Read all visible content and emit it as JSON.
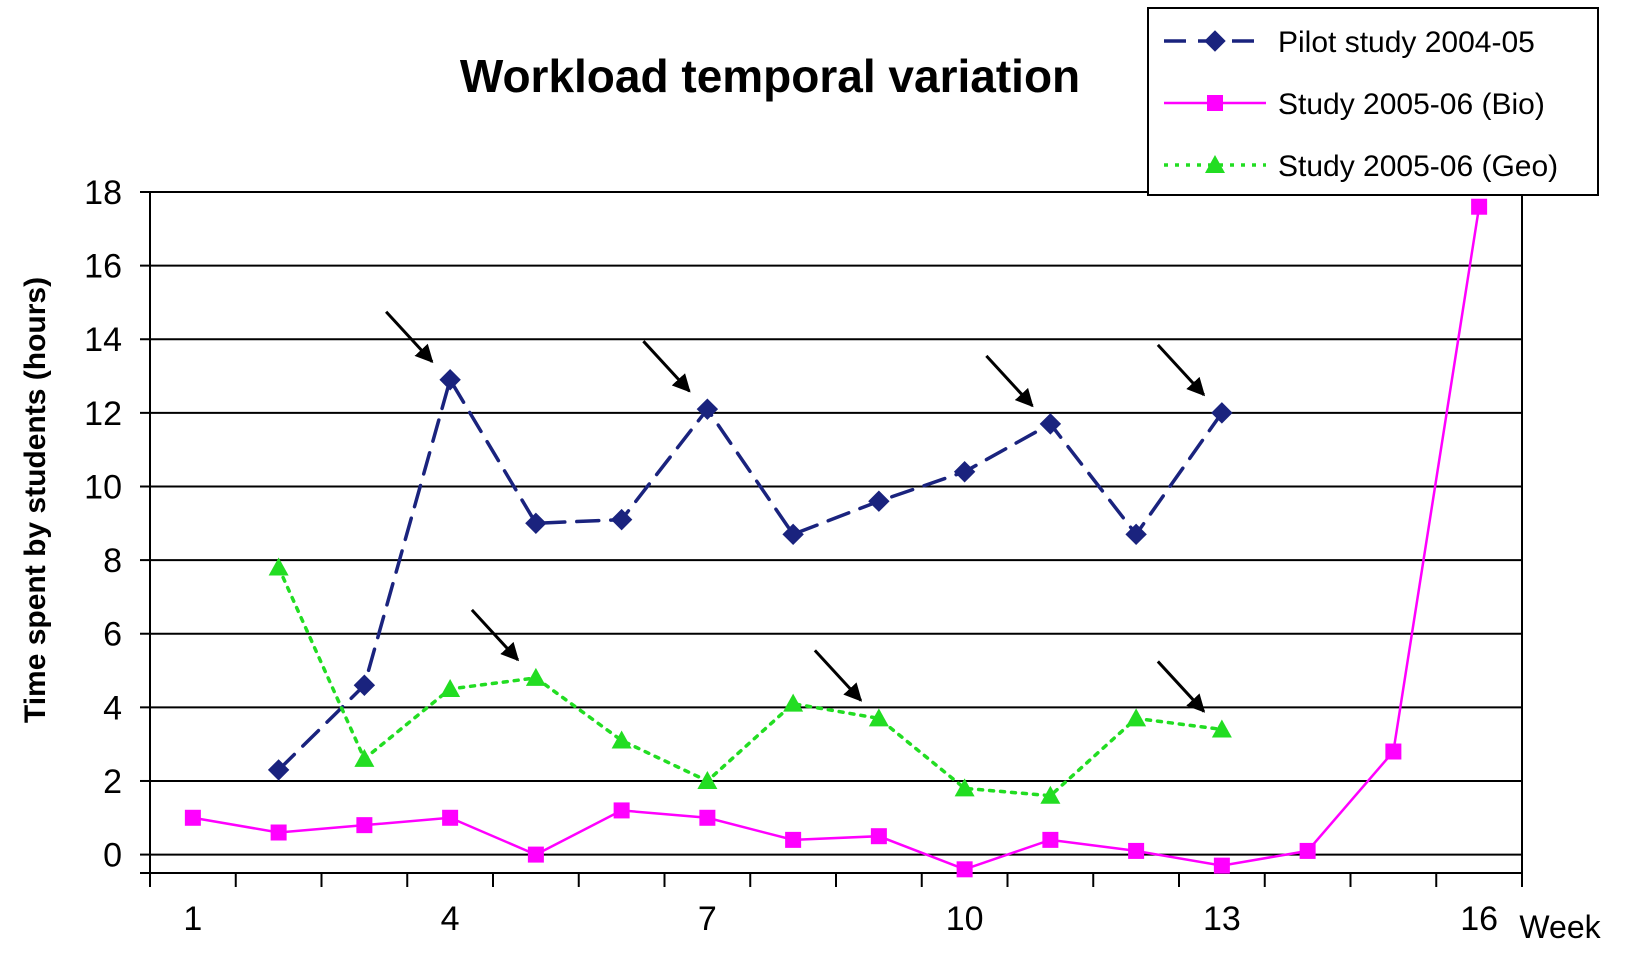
{
  "chart_data": {
    "type": "line",
    "title": "Workload temporal variation",
    "xlabel": "Week",
    "ylabel": "Time spent by students (hours)",
    "xlim": [
      0.5,
      16.5
    ],
    "ylim": [
      -0.5,
      18
    ],
    "x_ticks": [
      1,
      4,
      7,
      10,
      13,
      16
    ],
    "y_ticks": [
      0,
      2,
      4,
      6,
      8,
      10,
      12,
      14,
      16,
      18
    ],
    "grid": "horizontal",
    "legend_position": "top-right",
    "series": [
      {
        "name": "Pilot study 2004-05",
        "color": "#1a237e",
        "line_style": "dashed",
        "marker": "diamond",
        "x": [
          2,
          3,
          4,
          5,
          6,
          7,
          8,
          9,
          10,
          11,
          12,
          13
        ],
        "values": [
          2.3,
          4.6,
          12.9,
          9.0,
          9.1,
          12.1,
          8.7,
          9.6,
          10.4,
          11.7,
          8.7,
          12.0
        ]
      },
      {
        "name": "Study 2005-06 (Bio)",
        "color": "#ff00ff",
        "line_style": "solid",
        "marker": "square",
        "x": [
          1,
          2,
          3,
          4,
          5,
          6,
          7,
          8,
          9,
          10,
          11,
          12,
          13,
          14,
          15,
          16
        ],
        "values": [
          1.0,
          0.6,
          0.8,
          1.0,
          0.0,
          1.2,
          1.0,
          0.4,
          0.5,
          -0.4,
          0.4,
          0.1,
          -0.3,
          0.1,
          2.8,
          17.6
        ]
      },
      {
        "name": "Study 2005-06 (Geo)",
        "color": "#22dd22",
        "line_style": "dotted",
        "marker": "triangle",
        "x": [
          2,
          3,
          4,
          5,
          6,
          7,
          8,
          9,
          10,
          11,
          12,
          13
        ],
        "values": [
          7.8,
          2.6,
          4.5,
          4.8,
          3.1,
          2.0,
          4.1,
          3.7,
          1.8,
          1.6,
          3.7,
          3.4
        ]
      }
    ],
    "annotations": {
      "type": "arrow",
      "targets": [
        {
          "series": 0,
          "x": 4
        },
        {
          "series": 0,
          "x": 7
        },
        {
          "series": 0,
          "x": 11
        },
        {
          "series": 0,
          "x": 13
        },
        {
          "series": 2,
          "x": 5
        },
        {
          "series": 2,
          "x": 9
        },
        {
          "series": 2,
          "x": 13
        }
      ]
    }
  }
}
